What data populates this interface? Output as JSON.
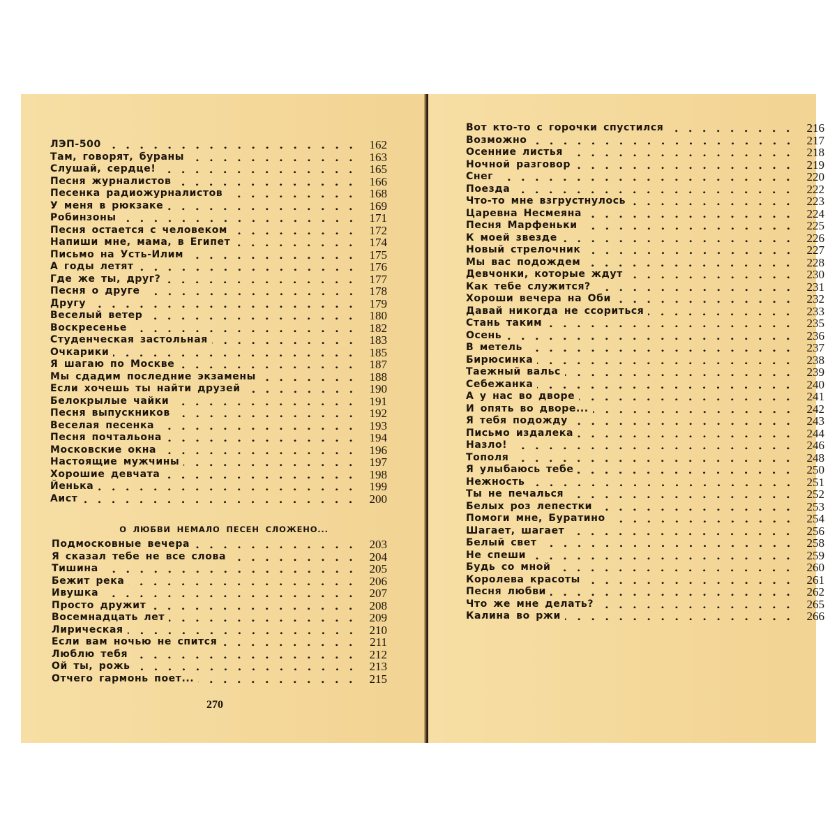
{
  "left_page": {
    "entries": [
      {
        "title": "ЛЭП-500",
        "page": "162"
      },
      {
        "title": "Там, говорят, бураны",
        "page": "163"
      },
      {
        "title": "Слушай, сердце!",
        "page": "165"
      },
      {
        "title": "Песня журналистов",
        "page": "166"
      },
      {
        "title": "Песенка радиожурналистов",
        "page": "168"
      },
      {
        "title": "У меня в рюкзаке",
        "page": "169"
      },
      {
        "title": "Робинзоны",
        "page": "171"
      },
      {
        "title": "Песня остается с человеком",
        "page": "172"
      },
      {
        "title": "Напиши мне, мама, в Египет",
        "page": "174"
      },
      {
        "title": "Письмо на Усть-Илим",
        "page": "175"
      },
      {
        "title": "А годы летят",
        "page": "176"
      },
      {
        "title": "Где же ты, друг?",
        "page": "177"
      },
      {
        "title": "Песня о друге",
        "page": "178"
      },
      {
        "title": "Другу",
        "page": "179"
      },
      {
        "title": "Веселый ветер",
        "page": "180"
      },
      {
        "title": "Воскресенье",
        "page": "182"
      },
      {
        "title": "Студенческая застольная",
        "page": "183"
      },
      {
        "title": "Очкарики",
        "page": "185"
      },
      {
        "title": "Я шагаю по Москве",
        "page": "187"
      },
      {
        "title": "Мы сдадим последние экзамены",
        "page": "188"
      },
      {
        "title": "Если хочешь ты найти друзей",
        "page": "190"
      },
      {
        "title": "Белокрылые чайки",
        "page": "191"
      },
      {
        "title": "Песня выпускников",
        "page": "192"
      },
      {
        "title": "Веселая песенка",
        "page": "193"
      },
      {
        "title": "Песня почтальона",
        "page": "194"
      },
      {
        "title": "Московские окна",
        "page": "196"
      },
      {
        "title": "Настоящие мужчины",
        "page": "197"
      },
      {
        "title": "Хорошие девчата",
        "page": "198"
      },
      {
        "title": "Йенька",
        "page": "199"
      },
      {
        "title": "Аист",
        "page": "200"
      }
    ],
    "section_heading": "О ЛЮБВИ НЕМАЛО ПЕСЕН СЛОЖЕНО...",
    "section_entries": [
      {
        "title": "Подмосковные вечера",
        "page": "203"
      },
      {
        "title": "Я сказал тебе не все слова",
        "page": "204"
      },
      {
        "title": "Тишина",
        "page": "205"
      },
      {
        "title": "Бежит река",
        "page": "206"
      },
      {
        "title": "Ивушка",
        "page": "207"
      },
      {
        "title": "Просто дружит",
        "page": "208"
      },
      {
        "title": "Восемнадцать лет",
        "page": "209"
      },
      {
        "title": "Лирическая",
        "page": "210"
      },
      {
        "title": "Если вам ночью не спится",
        "page": "211"
      },
      {
        "title": "Люблю тебя",
        "page": "212"
      },
      {
        "title": "Ой ты, рожь",
        "page": "213"
      },
      {
        "title": "Отчего гармонь поет...",
        "page": "215"
      }
    ],
    "folio": "270"
  },
  "right_page": {
    "entries": [
      {
        "title": "Вот кто-то с горочки спустился",
        "page": "216"
      },
      {
        "title": "Возможно",
        "page": "217"
      },
      {
        "title": "Осенние листья",
        "page": "218"
      },
      {
        "title": "Ночной разговор",
        "page": "219"
      },
      {
        "title": "Снег",
        "page": "220"
      },
      {
        "title": "Поезда",
        "page": "222"
      },
      {
        "title": "Что-то мне взгрустнулось",
        "page": "223"
      },
      {
        "title": "Царевна Несмеяна",
        "page": "224"
      },
      {
        "title": "Песня Марфеньки",
        "page": "225"
      },
      {
        "title": "К моей звезде",
        "page": "226"
      },
      {
        "title": "Новый стрелочник",
        "page": "227"
      },
      {
        "title": "Мы вас подождем",
        "page": "228"
      },
      {
        "title": "Девчонки, которые ждут",
        "page": "230"
      },
      {
        "title": "Как тебе служится?",
        "page": "231"
      },
      {
        "title": "Хороши вечера на Оби",
        "page": "232"
      },
      {
        "title": "Давай никогда не ссориться",
        "page": "233"
      },
      {
        "title": "Стань таким",
        "page": "235"
      },
      {
        "title": "Осень",
        "page": "236"
      },
      {
        "title": "В метель",
        "page": "237"
      },
      {
        "title": "Бирюсинка",
        "page": "238"
      },
      {
        "title": "Таежный вальс",
        "page": "239"
      },
      {
        "title": "Себежанка",
        "page": "240"
      },
      {
        "title": "А у нас во дворе",
        "page": "241"
      },
      {
        "title": "И опять во дворе...",
        "page": "242"
      },
      {
        "title": "Я тебя подожду",
        "page": "243"
      },
      {
        "title": "Письмо издалека",
        "page": "244"
      },
      {
        "title": "Назло!",
        "page": "246"
      },
      {
        "title": "Тополя",
        "page": "248"
      },
      {
        "title": "Я улыбаюсь тебе",
        "page": "250"
      },
      {
        "title": "Нежность",
        "page": "251"
      },
      {
        "title": "Ты не печалься",
        "page": "252"
      },
      {
        "title": "Белых роз лепестки",
        "page": "253"
      },
      {
        "title": "Помоги мне, Буратино",
        "page": "254"
      },
      {
        "title": "Шагает, шагает",
        "page": "256"
      },
      {
        "title": "Белый свет",
        "page": "258"
      },
      {
        "title": "Не спеши",
        "page": "259"
      },
      {
        "title": "Будь со мной",
        "page": "260"
      },
      {
        "title": "Королева красоты",
        "page": "261"
      },
      {
        "title": "Песня любви",
        "page": "262"
      },
      {
        "title": "Что же мне делать?",
        "page": "265"
      },
      {
        "title": "Калина во ржи",
        "page": "266"
      }
    ]
  },
  "colors": {
    "paper": "#f4d898",
    "ink": "#1c140c"
  }
}
